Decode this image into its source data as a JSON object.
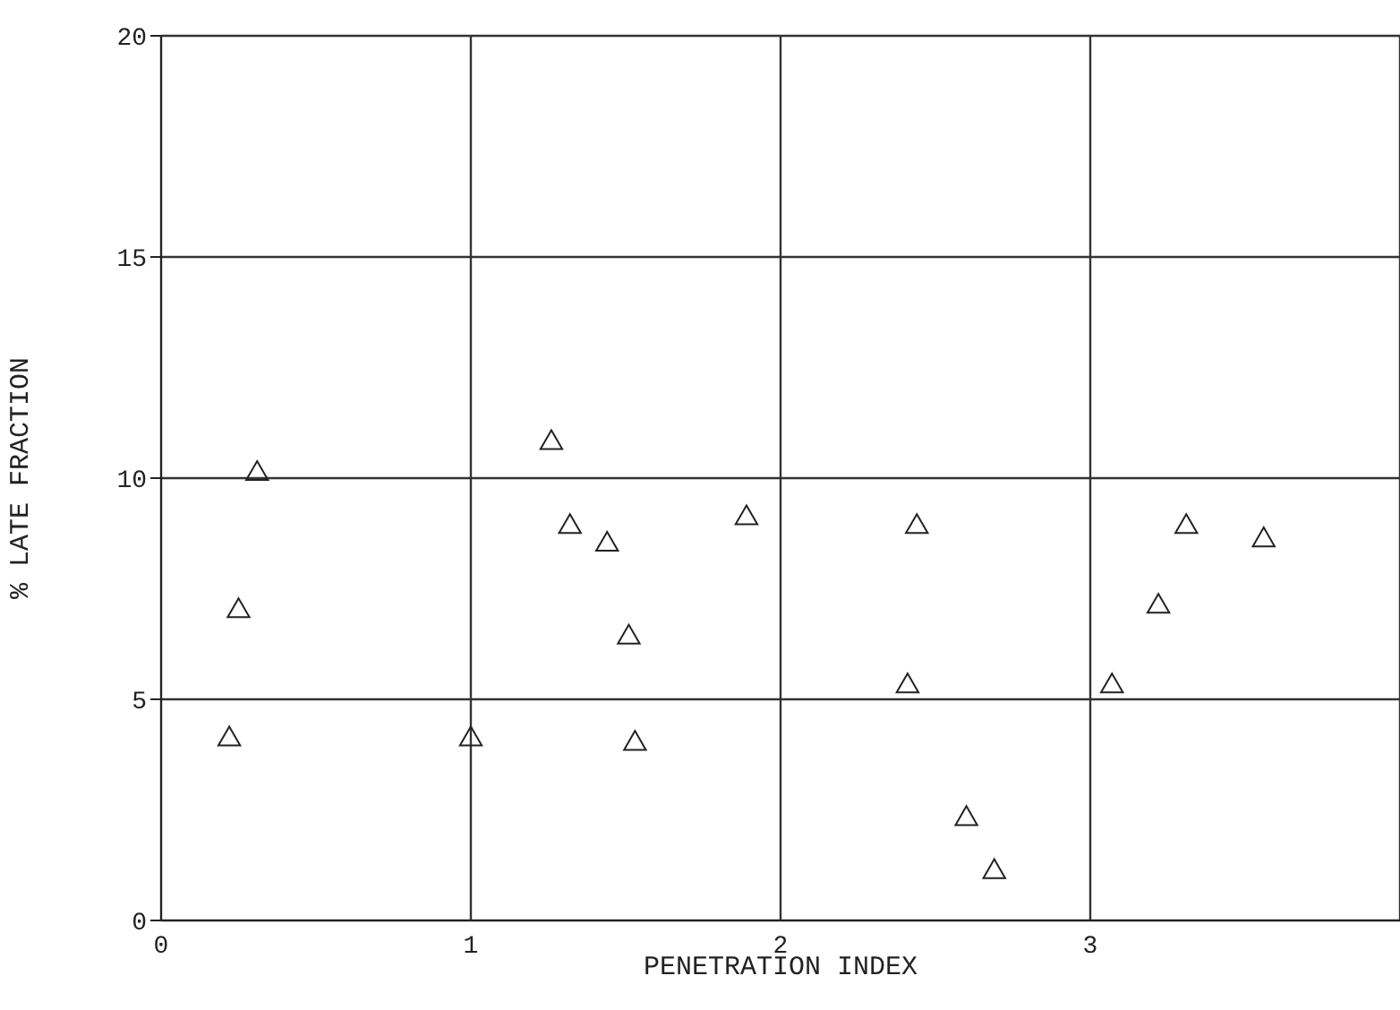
{
  "chart_data": {
    "type": "scatter",
    "xlabel": "PENETRATION INDEX",
    "ylabel": "% LATE FRACTION",
    "x": [
      0.22,
      0.25,
      0.31,
      1.0,
      1.26,
      1.32,
      1.44,
      1.51,
      1.53,
      1.89,
      2.41,
      2.44,
      2.6,
      2.69,
      3.07,
      3.22,
      3.31,
      3.56
    ],
    "series": [
      {
        "color": "#222222",
        "values": [
          4.1,
          7.0,
          10.1,
          4.1,
          10.8,
          8.9,
          8.5,
          6.4,
          4.0,
          9.1,
          5.3,
          8.9,
          2.3,
          1.1,
          5.3,
          7.1,
          8.9,
          8.6
        ]
      }
    ],
    "xlim": [
      0,
      4
    ],
    "xticks": [
      0,
      1,
      2,
      3
    ],
    "ylim": [
      0,
      20
    ],
    "yticks": [
      0,
      5,
      10,
      15,
      20
    ],
    "grid": true,
    "marker": "triangle"
  }
}
